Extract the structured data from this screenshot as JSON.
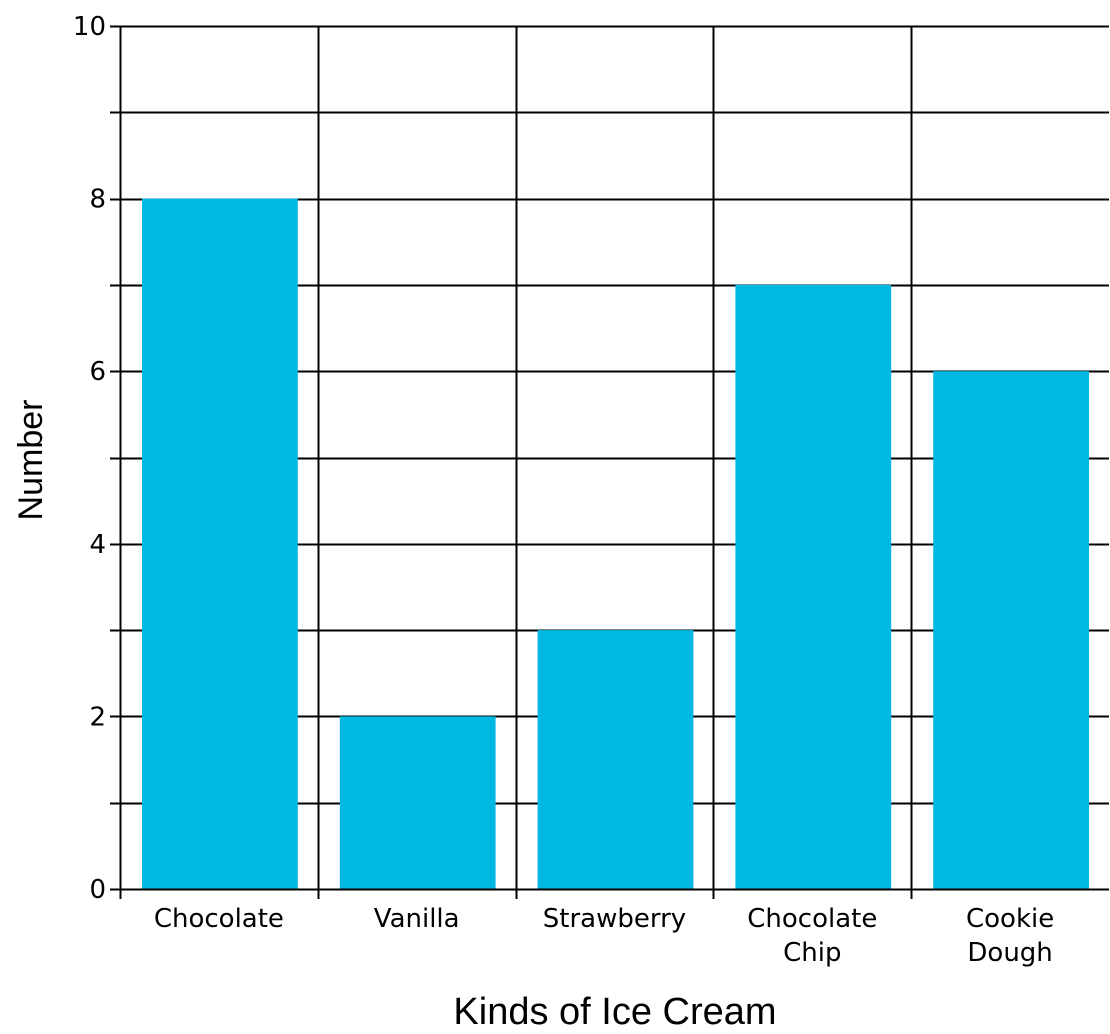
{
  "chart_data": {
    "type": "bar",
    "title": "",
    "xlabel": "Kinds of Ice Cream",
    "ylabel": "Number",
    "categories": [
      [
        "Chocolate"
      ],
      [
        "Vanilla"
      ],
      [
        "Strawberry"
      ],
      [
        "Chocolate",
        "Chip"
      ],
      [
        "Cookie",
        "Dough"
      ]
    ],
    "values": [
      8,
      2,
      3,
      7,
      6
    ],
    "ylim": [
      0,
      10
    ],
    "yticks": [
      0,
      2,
      4,
      6,
      8,
      10
    ],
    "ytick_labels": [
      "0",
      "2",
      "4",
      "6",
      "8",
      "10"
    ],
    "minor_gridlines_every": 1,
    "grid": true,
    "bar_color": "#00B9E3",
    "grid_color": "#000000"
  }
}
